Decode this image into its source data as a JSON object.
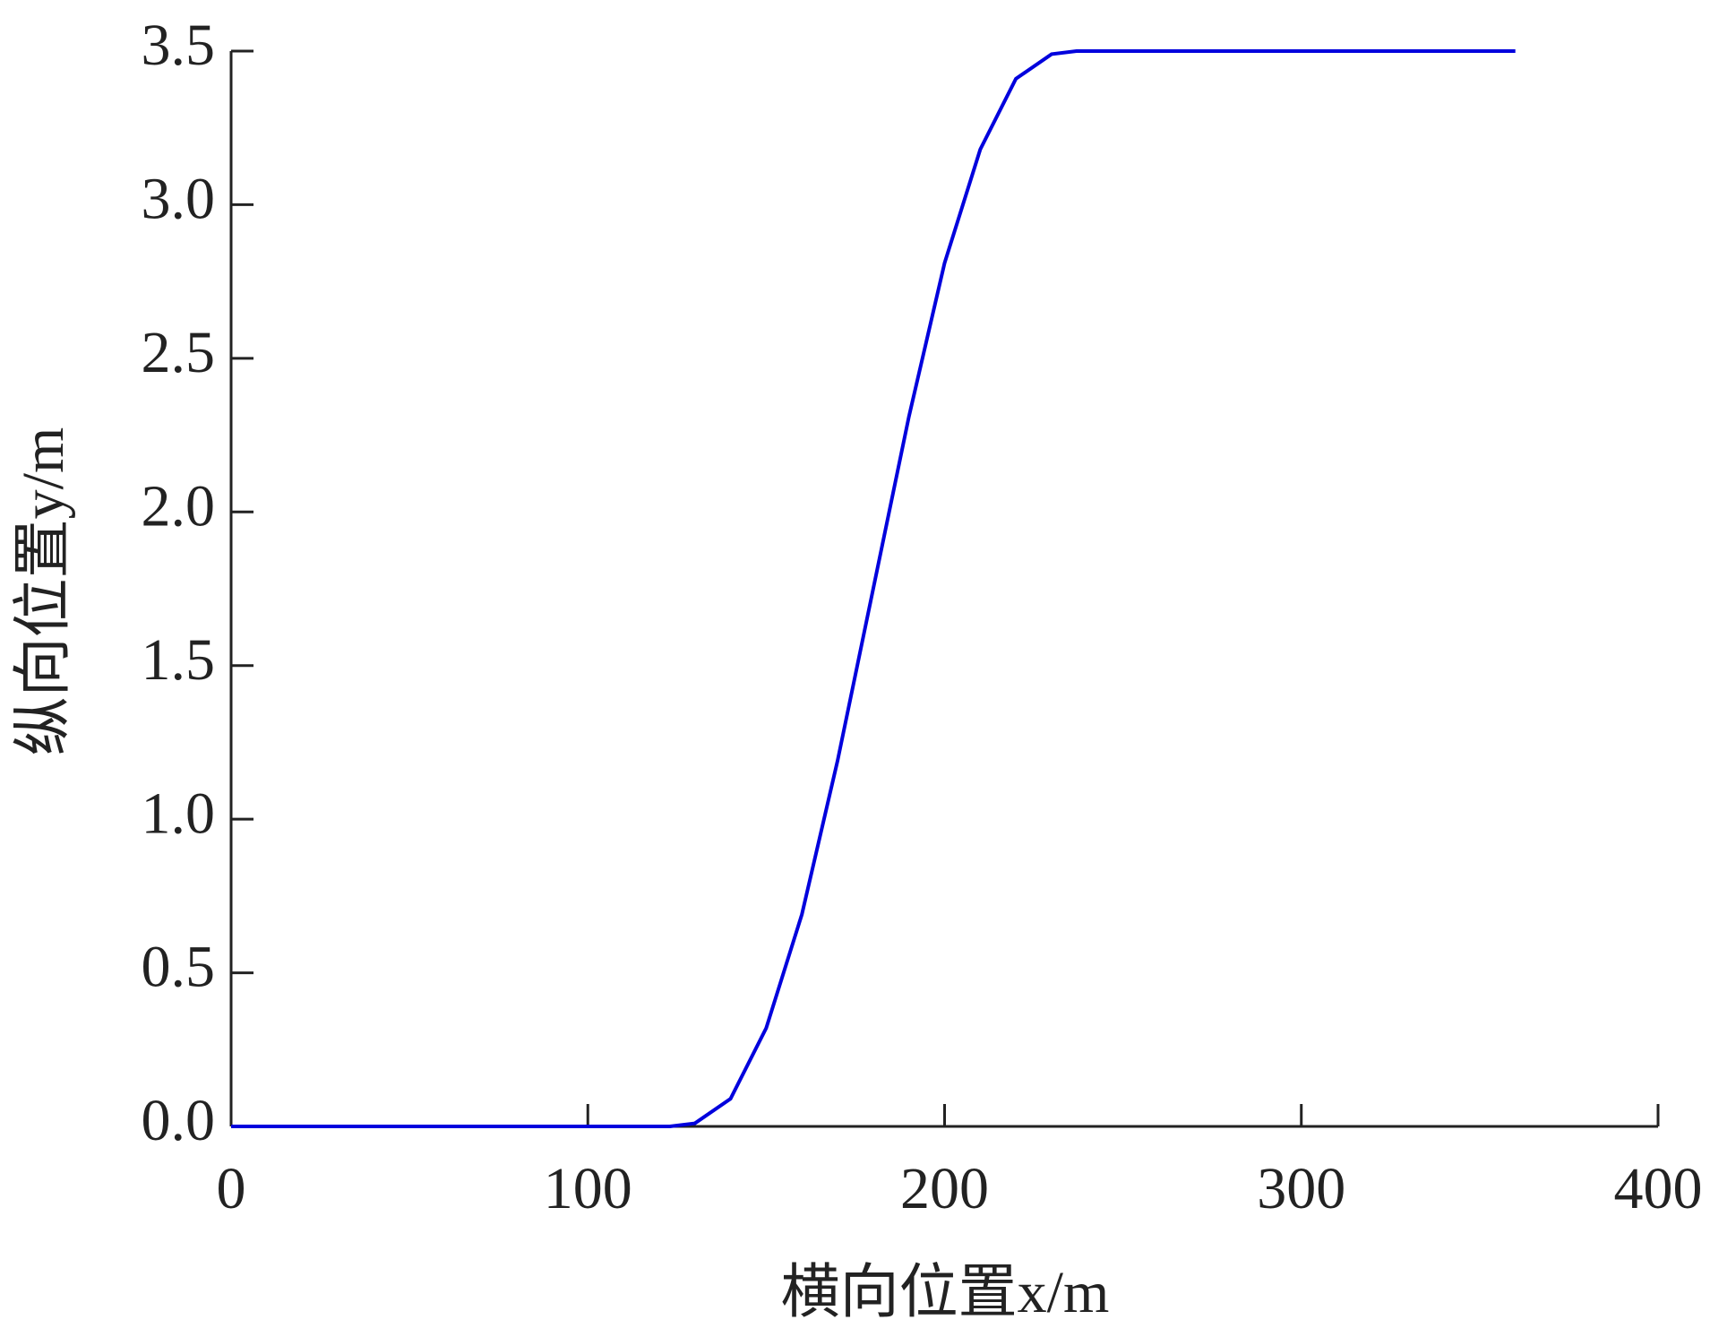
{
  "chart_data": {
    "type": "line",
    "x_label": "横向位置x/m",
    "y_label": "纵向位置y/m",
    "xlim": [
      0,
      400
    ],
    "xticks": [
      0,
      100,
      200,
      300,
      400
    ],
    "ylim": [
      0,
      3.5
    ],
    "yticks": [
      {
        "value": 0,
        "label": "0.0"
      },
      0.5,
      {
        "value": 1,
        "label": "1.0"
      },
      1.5,
      {
        "value": 2,
        "label": "2.0"
      },
      2.5,
      {
        "value": 3,
        "label": "3.0"
      },
      3.5
    ],
    "x": [
      0,
      100,
      123,
      130,
      140,
      150,
      160,
      170,
      180,
      190,
      200,
      210,
      220,
      230,
      237,
      360
    ],
    "series": [
      {
        "color": "#0000dd",
        "values": [
          0,
          0,
          0,
          0.01,
          0.09,
          0.32,
          0.69,
          1.19,
          1.75,
          2.31,
          2.81,
          3.18,
          3.41,
          3.49,
          3.5,
          3.5
        ]
      }
    ]
  }
}
